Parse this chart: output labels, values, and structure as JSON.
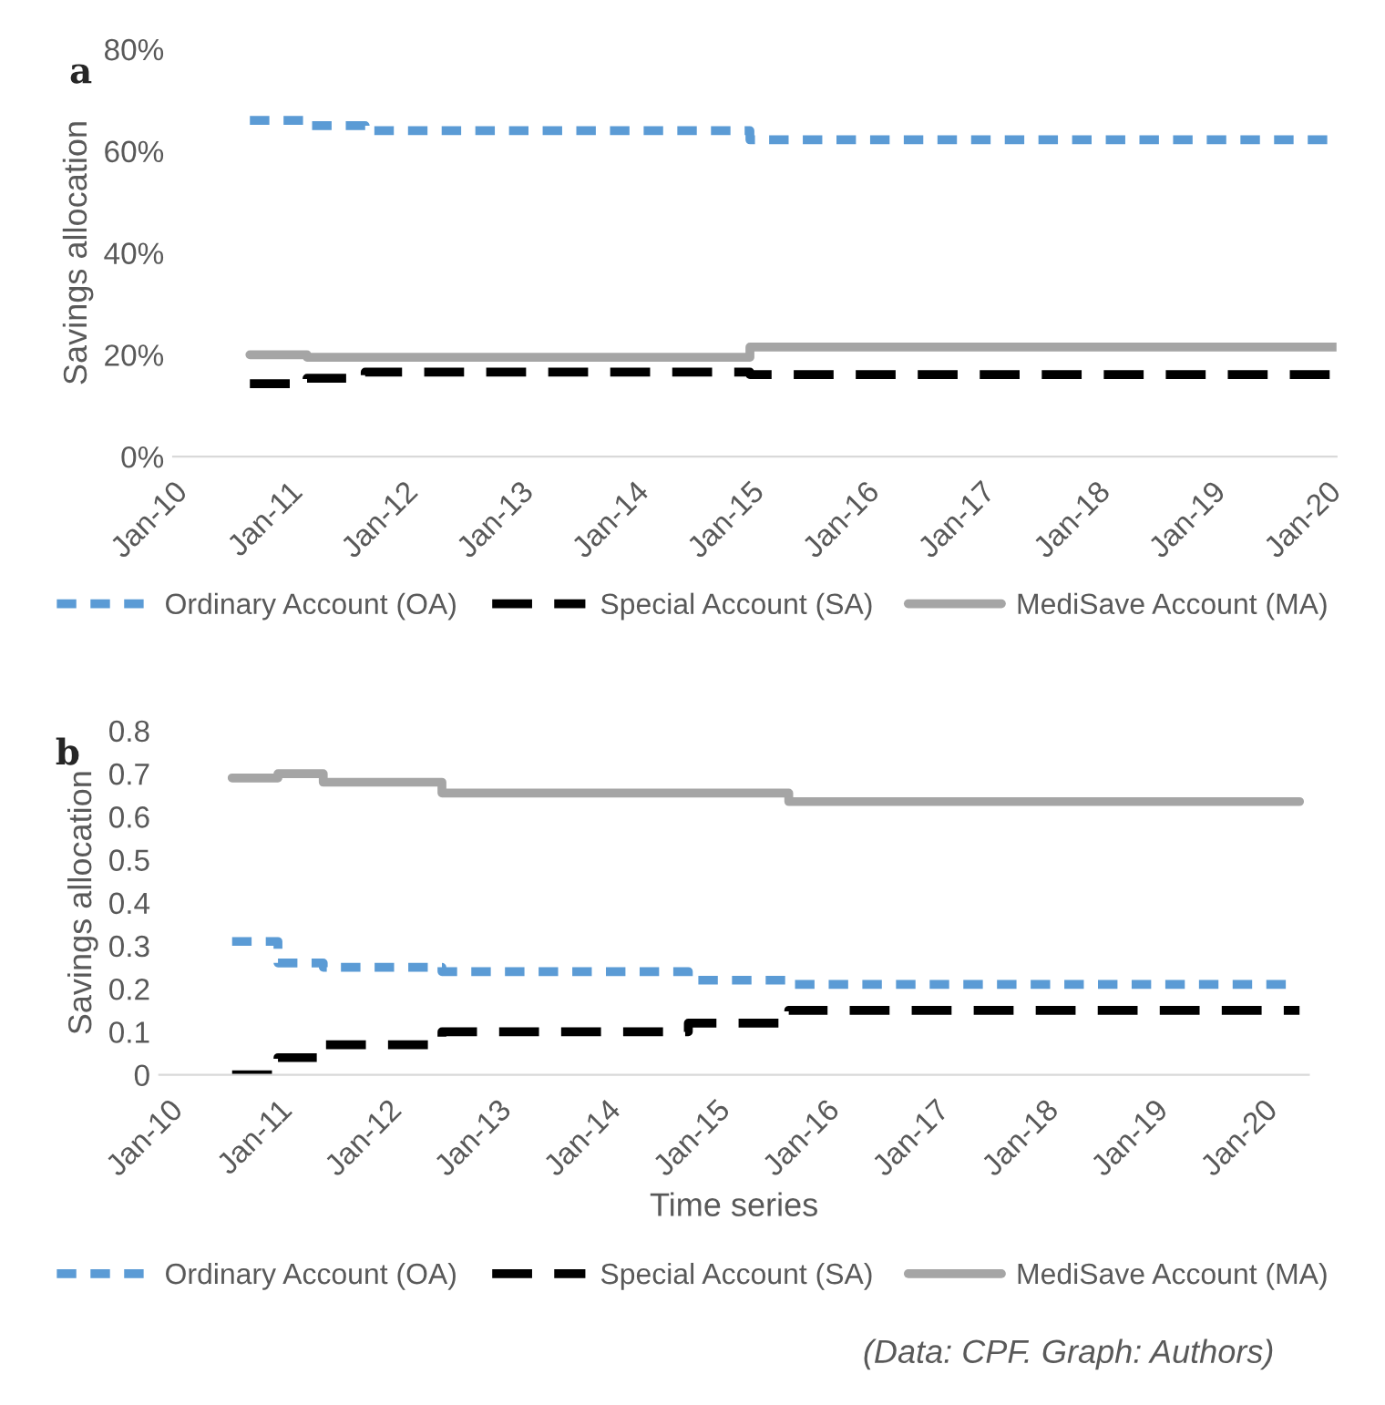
{
  "chart_data": [
    {
      "type": "step",
      "title": "a",
      "ylabel": "Savings allocation",
      "xlim": [
        "2010-01",
        "2020-02"
      ],
      "ylim": [
        0,
        80
      ],
      "xticks": [
        {
          "value": "2010-01",
          "label": "Jan-10"
        },
        {
          "value": "2011-01",
          "label": "Jan-11"
        },
        {
          "value": "2012-01",
          "label": "Jan-12"
        },
        {
          "value": "2013-01",
          "label": "Jan-13"
        },
        {
          "value": "2014-01",
          "label": "Jan-14"
        },
        {
          "value": "2015-01",
          "label": "Jan-15"
        },
        {
          "value": "2016-01",
          "label": "Jan-16"
        },
        {
          "value": "2017-01",
          "label": "Jan-17"
        },
        {
          "value": "2018-01",
          "label": "Jan-18"
        },
        {
          "value": "2019-01",
          "label": "Jan-19"
        },
        {
          "value": "2020-01",
          "label": "Jan-20"
        }
      ],
      "yticks": [
        {
          "value": 0,
          "label": "0%"
        },
        {
          "value": 20,
          "label": "20%"
        },
        {
          "value": 40,
          "label": "40%"
        },
        {
          "value": 60,
          "label": "60%"
        },
        {
          "value": 80,
          "label": "80%"
        }
      ],
      "legend": "bottom",
      "grid": false,
      "series": [
        {
          "name": "Ordinary Account (OA)",
          "color": "#5b9bd5",
          "line_style": "dotted",
          "x": [
            "2010-09",
            "2011-03",
            "2011-09",
            "2015-01",
            "2020-02"
          ],
          "values": [
            66,
            65,
            64,
            62.2,
            62.2
          ]
        },
        {
          "name": "Special Account (SA)",
          "color": "#000000",
          "line_style": "dashed",
          "x": [
            "2010-09",
            "2011-03",
            "2011-09",
            "2015-01",
            "2020-02"
          ],
          "values": [
            14.3,
            15.4,
            16.6,
            16.1,
            16.1
          ]
        },
        {
          "name": "MediSave Account (MA)",
          "color": "#a5a5a5",
          "line_style": "solid",
          "x": [
            "2010-09",
            "2011-03",
            "2011-09",
            "2015-01",
            "2020-02"
          ],
          "values": [
            20,
            19.5,
            19.5,
            21.5,
            21.5
          ]
        }
      ]
    },
    {
      "type": "step",
      "title": "b",
      "ylabel": "Savings allocation",
      "xlabel": "Time series",
      "xlim": [
        "2009-12",
        "2020-06"
      ],
      "ylim": [
        0,
        0.8
      ],
      "xticks": [
        {
          "value": "2010-01",
          "label": "Jan-10"
        },
        {
          "value": "2011-01",
          "label": "Jan-11"
        },
        {
          "value": "2012-01",
          "label": "Jan-12"
        },
        {
          "value": "2013-01",
          "label": "Jan-13"
        },
        {
          "value": "2014-01",
          "label": "Jan-14"
        },
        {
          "value": "2015-01",
          "label": "Jan-15"
        },
        {
          "value": "2016-01",
          "label": "Jan-16"
        },
        {
          "value": "2017-01",
          "label": "Jan-17"
        },
        {
          "value": "2018-01",
          "label": "Jan-18"
        },
        {
          "value": "2019-01",
          "label": "Jan-19"
        },
        {
          "value": "2020-01",
          "label": "Jan-20"
        }
      ],
      "yticks": [
        0,
        0.1,
        0.2,
        0.3,
        0.4,
        0.5,
        0.6,
        0.7,
        0.8
      ],
      "legend": "bottom",
      "grid": false,
      "annotations": [
        "(Data: CPF. Graph: Authors)"
      ],
      "series": [
        {
          "name": "Ordinary Account (OA)",
          "color": "#5b9bd5",
          "line_style": "dotted",
          "x": [
            "2010-08",
            "2011-01",
            "2011-06",
            "2012-07",
            "2014-10",
            "2015-09",
            "2020-05"
          ],
          "values": [
            0.31,
            0.26,
            0.25,
            0.24,
            0.22,
            0.21,
            0.21
          ]
        },
        {
          "name": "Special Account (SA)",
          "color": "#000000",
          "line_style": "dashed",
          "x": [
            "2010-08",
            "2011-01",
            "2011-06",
            "2012-07",
            "2014-10",
            "2015-09",
            "2020-05"
          ],
          "values": [
            0,
            0.04,
            0.07,
            0.1,
            0.12,
            0.15,
            0.15
          ]
        },
        {
          "name": "MediSave Account (MA)",
          "color": "#a5a5a5",
          "line_style": "solid",
          "x": [
            "2010-08",
            "2011-01",
            "2011-06",
            "2012-07",
            "2015-09",
            "2020-05"
          ],
          "values": [
            0.69,
            0.7,
            0.68,
            0.655,
            0.635,
            0.635
          ]
        }
      ]
    }
  ]
}
